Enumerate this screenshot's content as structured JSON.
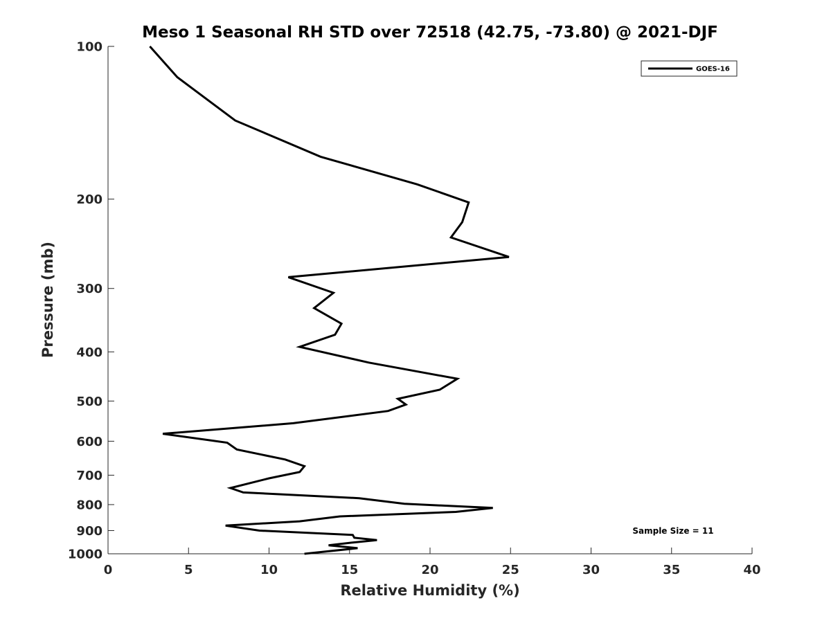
{
  "chart_data": {
    "type": "line",
    "title": "Meso 1 Seasonal RH STD over 72518 (42.75, -73.80) @ 2021-DJF",
    "xlabel": "Relative Humidity (%)",
    "ylabel": "Pressure (mb)",
    "xlim": [
      0,
      40
    ],
    "ylim": [
      100,
      1000
    ],
    "yscale": "log",
    "y_reversed": true,
    "x_ticks": [
      0,
      5,
      10,
      15,
      20,
      25,
      30,
      35,
      40
    ],
    "y_ticks": [
      100,
      200,
      300,
      400,
      500,
      600,
      700,
      800,
      900,
      1000
    ],
    "grid": false,
    "legend": {
      "position": "top-right",
      "entries": [
        "GOES-16"
      ]
    },
    "annotation": "Sample Size = 11",
    "series": [
      {
        "name": "GOES-16",
        "color": "#000000",
        "x": [
          2.6,
          4.3,
          7.9,
          13.2,
          19.2,
          22.4,
          22.0,
          21.3,
          24.9,
          11.2,
          14.0,
          12.8,
          14.5,
          14.1,
          11.9,
          16.2,
          21.7,
          20.6,
          18.0,
          18.5,
          17.4,
          11.5,
          3.4,
          7.4,
          8.0,
          11.0,
          12.2,
          11.9,
          10.0,
          7.6,
          8.4,
          15.6,
          18.4,
          23.9,
          21.6,
          14.4,
          11.9,
          7.3,
          9.4,
          15.2,
          15.3,
          16.7,
          15.2,
          13.7,
          15.5,
          12.2
        ]
      }
    ],
    "y": [
      100,
      115,
      140,
      165,
      187,
      203,
      222,
      238,
      260,
      285,
      306,
      328,
      352,
      370,
      391,
      420,
      452,
      475,
      495,
      508,
      523,
      553,
      580,
      604,
      623,
      652,
      672,
      690,
      710,
      742,
      757,
      777,
      797,
      812,
      827,
      844,
      863,
      880,
      900,
      918,
      930,
      940,
      950,
      962,
      975,
      1000
    ]
  }
}
